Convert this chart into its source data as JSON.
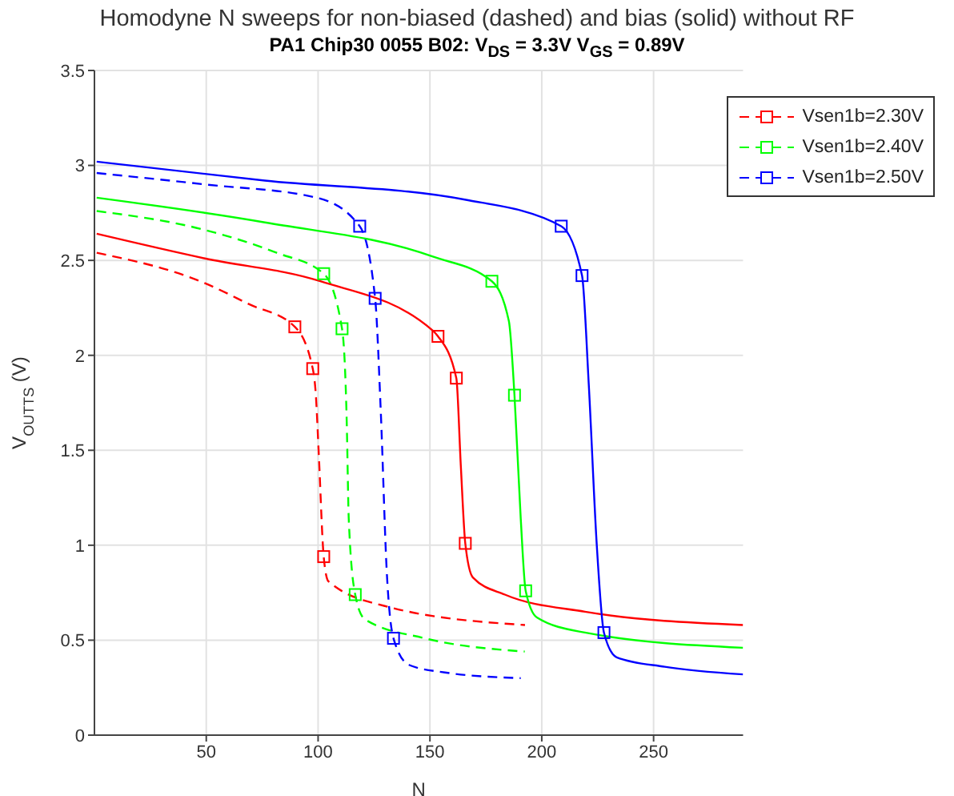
{
  "chart_data": {
    "type": "line",
    "title": "Homodyne N sweeps for non-biased (dashed) and bias (solid) without RF",
    "subtitle": "PA1 Chip30 0055 B02: V$_{DS}$ = 3.3V  V$_{GS}$ = 0.89V",
    "xlabel": "N",
    "ylabel": "V$_{OUT}$$_{TS}$ (V)",
    "xlim": [
      0,
      290
    ],
    "xticks": [
      50,
      100,
      150,
      200,
      250
    ],
    "ylim": [
      0,
      3.5
    ],
    "yticks": [
      0,
      0.5,
      1,
      1.5,
      2,
      2.5,
      3,
      3.5
    ],
    "grid": true,
    "legend": "top right",
    "series": [
      {
        "name": "Vsen1b=2.30V",
        "color": "#ff0000",
        "line_style": "dashed",
        "marker": "none",
        "x": [
          1,
          49.4,
          69,
          89.6,
          97.6,
          99,
          100.3,
          102.5,
          104.6,
          129.8,
          192.5
        ],
        "values": [
          2.54,
          2.38,
          2.27,
          2.15,
          1.93,
          1.79,
          1.48,
          0.94,
          0.81,
          0.68,
          0.58
        ]
      },
      {
        "name": "Vsen1b=2.40V",
        "color": "#00ff00",
        "line_style": "dashed",
        "marker": "none",
        "x": [
          1,
          49.4,
          81.5,
          102.5,
          110.7,
          112.8,
          113.7,
          116.6,
          120.9,
          147.7,
          192.4
        ],
        "values": [
          2.76,
          2.66,
          2.54,
          2.43,
          2.14,
          1.65,
          1.14,
          0.74,
          0.61,
          0.51,
          0.44
        ]
      },
      {
        "name": "Vsen1b=2.50V",
        "color": "#0000ff",
        "line_style": "dashed",
        "marker": "none",
        "x": [
          1,
          49.4,
          99.4,
          118.6,
          125.5,
          128,
          130.7,
          133.7,
          140.6,
          156.7,
          190.6
        ],
        "values": [
          2.96,
          2.9,
          2.83,
          2.68,
          2.3,
          1.71,
          0.86,
          0.51,
          0.37,
          0.33,
          0.3
        ]
      },
      {
        "type": "line",
        "color": "#ff0000",
        "line_style": "solid",
        "marker": "none",
        "x": [
          1,
          49.4,
          101,
          151.3,
          153.6,
          161.8,
          163.8,
          165.8,
          169.2,
          183.5,
          219.3,
          290
        ],
        "values": [
          2.64,
          2.51,
          2.39,
          2.13,
          2.1,
          1.88,
          1.42,
          1.01,
          0.83,
          0.74,
          0.65,
          0.58
        ]
      },
      {
        "type": "line",
        "color": "#00ff00",
        "line_style": "solid",
        "marker": "none",
        "x": [
          1,
          76.2,
          151.3,
          177.7,
          185.3,
          187.8,
          190.6,
          192.8,
          197.8,
          219.3,
          290
        ],
        "values": [
          2.83,
          2.7,
          2.52,
          2.39,
          2.18,
          1.79,
          1.14,
          0.76,
          0.62,
          0.54,
          0.46
        ]
      },
      {
        "type": "line",
        "color": "#0000ff",
        "line_style": "solid",
        "marker": "none",
        "x": [
          1,
          76.2,
          165.6,
          208.7,
          218,
          221,
          224.6,
          227.8,
          233.5,
          255,
          290
        ],
        "values": [
          3.02,
          2.92,
          2.82,
          2.68,
          2.42,
          1.85,
          1,
          0.54,
          0.41,
          0.36,
          0.32
        ]
      },
      {
        "type": "scatter",
        "color": "#ff0000",
        "marker": "square",
        "x": [
          89.6,
          97.6,
          102.5,
          153.6,
          161.8,
          165.8
        ],
        "values": [
          2.15,
          1.93,
          0.94,
          2.1,
          1.88,
          1.01
        ]
      },
      {
        "type": "scatter",
        "color": "#00ff00",
        "marker": "square",
        "x": [
          102.5,
          110.7,
          116.6,
          177.7,
          187.8,
          192.8
        ],
        "values": [
          2.43,
          2.14,
          0.74,
          2.39,
          1.79,
          0.76
        ]
      },
      {
        "type": "scatter",
        "color": "#0000ff",
        "marker": "square",
        "x": [
          118.6,
          125.5,
          133.7,
          208.7,
          218,
          227.8
        ],
        "values": [
          2.68,
          2.3,
          0.51,
          2.68,
          2.42,
          0.54
        ]
      }
    ]
  }
}
